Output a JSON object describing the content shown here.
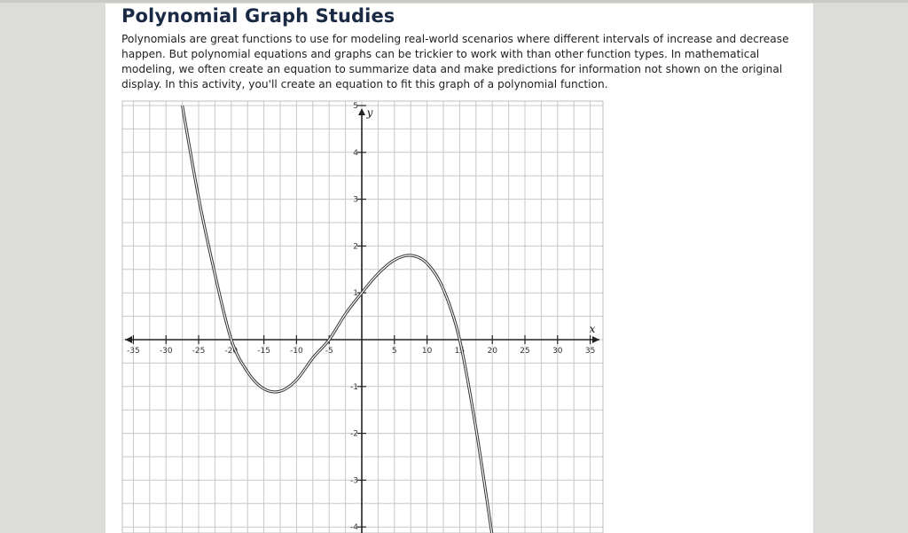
{
  "header": {
    "title": "Polynomial Graph Studies",
    "intro": "Polynomials are great functions to use for modeling real-world scenarios where different intervals of increase and decrease happen. But polynomial equations and graphs can be trickier to work with than other function types. In mathematical modeling, we often create an equation to summarize data and make predictions for information not shown on the original display. In this activity, you'll create an equation to fit this graph of a polynomial function."
  },
  "chart_data": {
    "type": "line",
    "title": "",
    "xlabel": "x",
    "ylabel": "y",
    "xlim": [
      -36,
      37
    ],
    "ylim": [
      -4.2,
      5.3
    ],
    "x_ticks": [
      -35,
      -30,
      -25,
      -20,
      -15,
      -10,
      -5,
      5,
      10,
      15,
      20,
      25,
      30,
      35
    ],
    "x_tick_labels": [
      "-35",
      "-30",
      "-25",
      "-20",
      "-15",
      "-10",
      "-5",
      "5",
      "10",
      "15",
      "20",
      "25",
      "30",
      "35"
    ],
    "y_ticks": [
      -4,
      -3,
      -2,
      -1,
      1,
      2,
      3,
      4,
      5
    ],
    "y_tick_labels": [
      "-4",
      "-3",
      "-2",
      "-1",
      "1",
      "2",
      "3",
      "4",
      "5"
    ],
    "grid": true,
    "series": [
      {
        "x": [
          -27.5,
          -25,
          -22.5,
          -20,
          -17.5,
          -15,
          -12.5,
          -10,
          -7.5,
          -5,
          -2.5,
          0,
          2.5,
          5,
          7.5,
          10,
          12.5,
          15,
          17.5,
          20
        ],
        "y": [
          5.0,
          3.03,
          1.4,
          0.0,
          -0.69,
          -1.05,
          -1.1,
          -0.86,
          -0.39,
          0.0,
          0.55,
          1.0,
          1.41,
          1.7,
          1.8,
          1.63,
          1.08,
          0.0,
          -1.9,
          -4.2
        ]
      }
    ]
  }
}
